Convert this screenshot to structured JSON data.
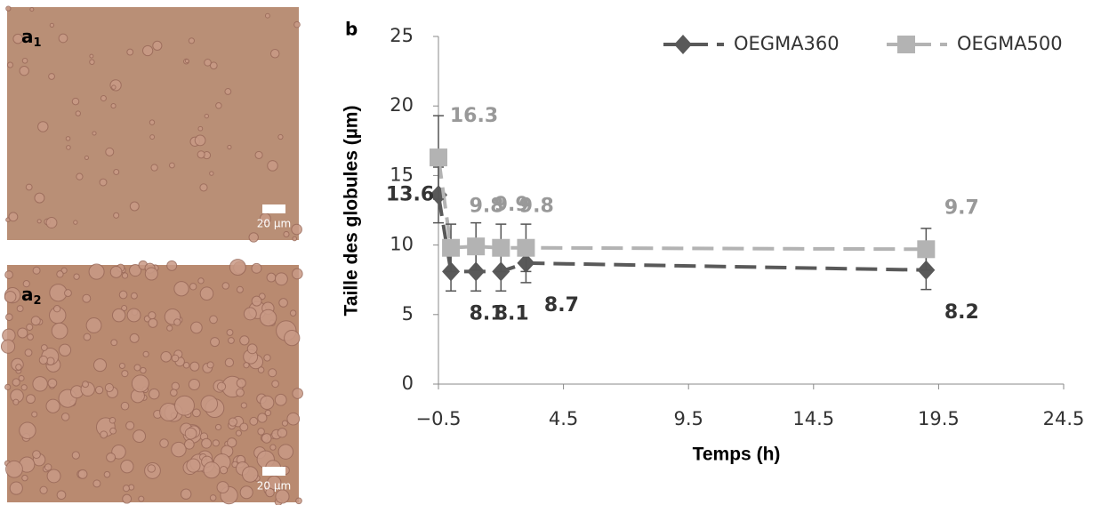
{
  "panels": [
    {
      "label": "a",
      "subscript": "1",
      "scale_bar": "20 µm"
    },
    {
      "label": "a",
      "subscript": "2",
      "scale_bar": "20 µm"
    }
  ],
  "chart_data": {
    "type": "line",
    "panel_label": "b",
    "x_label": "Temps (h)",
    "y_label": "Taille des globules (µm)",
    "x": [
      -0.5,
      0,
      1,
      2,
      3,
      19
    ],
    "series": [
      {
        "name": "OEGMA360",
        "color": "#595959",
        "marker": "diamond",
        "values": [
          13.6,
          8.1,
          8.1,
          8.1,
          8.7,
          8.2
        ],
        "errors": [
          2.0,
          1.4,
          1.4,
          1.4,
          1.4,
          1.4
        ],
        "value_labels": [
          "13.6",
          "8.1",
          "8.1",
          null,
          "8.7",
          "8.2"
        ]
      },
      {
        "name": "OEGMA500",
        "color": "#b3b3b3",
        "marker": "square",
        "values": [
          16.3,
          9.8,
          9.9,
          9.8,
          9.8,
          9.7
        ],
        "errors": [
          3.0,
          1.7,
          1.7,
          1.7,
          1.7,
          1.5
        ],
        "value_labels": [
          "16.3",
          "9.8",
          "9.9",
          "9.8",
          null,
          "9.7"
        ]
      }
    ],
    "xlim": [
      -0.5,
      24.5
    ],
    "xticks": [
      {
        "value": -0.5,
        "label": "−0.5"
      },
      4.5,
      9.5,
      14.5,
      19.5,
      24.5
    ],
    "ylim": [
      0,
      25
    ],
    "yticks": [
      0,
      5,
      10,
      15,
      20,
      25
    ],
    "grid": false,
    "legend": "top-right"
  }
}
